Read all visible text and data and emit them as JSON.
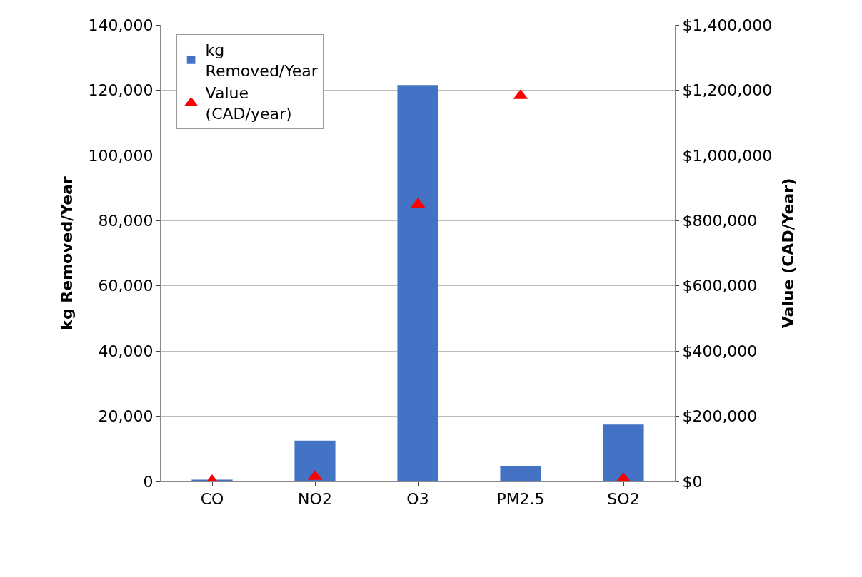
{
  "chart_data": {
    "type": "bar",
    "categories": [
      "CO",
      "NO2",
      "O3",
      "PM2.5",
      "SO2"
    ],
    "ylabel": "kg Removed/Year",
    "y2label": "Value (CAD/Year)",
    "series": [
      {
        "name": "kg Removed/Year",
        "color": "#4472c4",
        "values": [
          600,
          12500,
          121600,
          4800,
          17500
        ]
      },
      {
        "name": "Value (CAD/year)",
        "type": "scatter",
        "axis": "y2",
        "marker": "triangle",
        "color": "#ff0000",
        "values": [
          2000,
          15000,
          850000,
          1183000,
          9000
        ]
      }
    ],
    "ylim": [
      0,
      140000
    ],
    "yticks": [
      {
        "value": 0,
        "label": "0"
      },
      {
        "value": 20000,
        "label": "20,000"
      },
      {
        "value": 40000,
        "label": "40,000"
      },
      {
        "value": 60000,
        "label": "60,000"
      },
      {
        "value": 80000,
        "label": "80,000"
      },
      {
        "value": 100000,
        "label": "100,000"
      },
      {
        "value": 120000,
        "label": "120,000"
      },
      {
        "value": 140000,
        "label": "140,000"
      }
    ],
    "y2lim": [
      0,
      1400000
    ],
    "y2ticks": [
      {
        "value": 0,
        "label": "$0"
      },
      {
        "value": 200000,
        "label": "$200,000"
      },
      {
        "value": 400000,
        "label": "$400,000"
      },
      {
        "value": 600000,
        "label": "$600,000"
      },
      {
        "value": 800000,
        "label": "$800,000"
      },
      {
        "value": 1000000,
        "label": "$1,000,000"
      },
      {
        "value": 1200000,
        "label": "$1,200,000"
      },
      {
        "value": 1400000,
        "label": "$1,400,000"
      }
    ],
    "grid": "y",
    "legend": "top left"
  }
}
